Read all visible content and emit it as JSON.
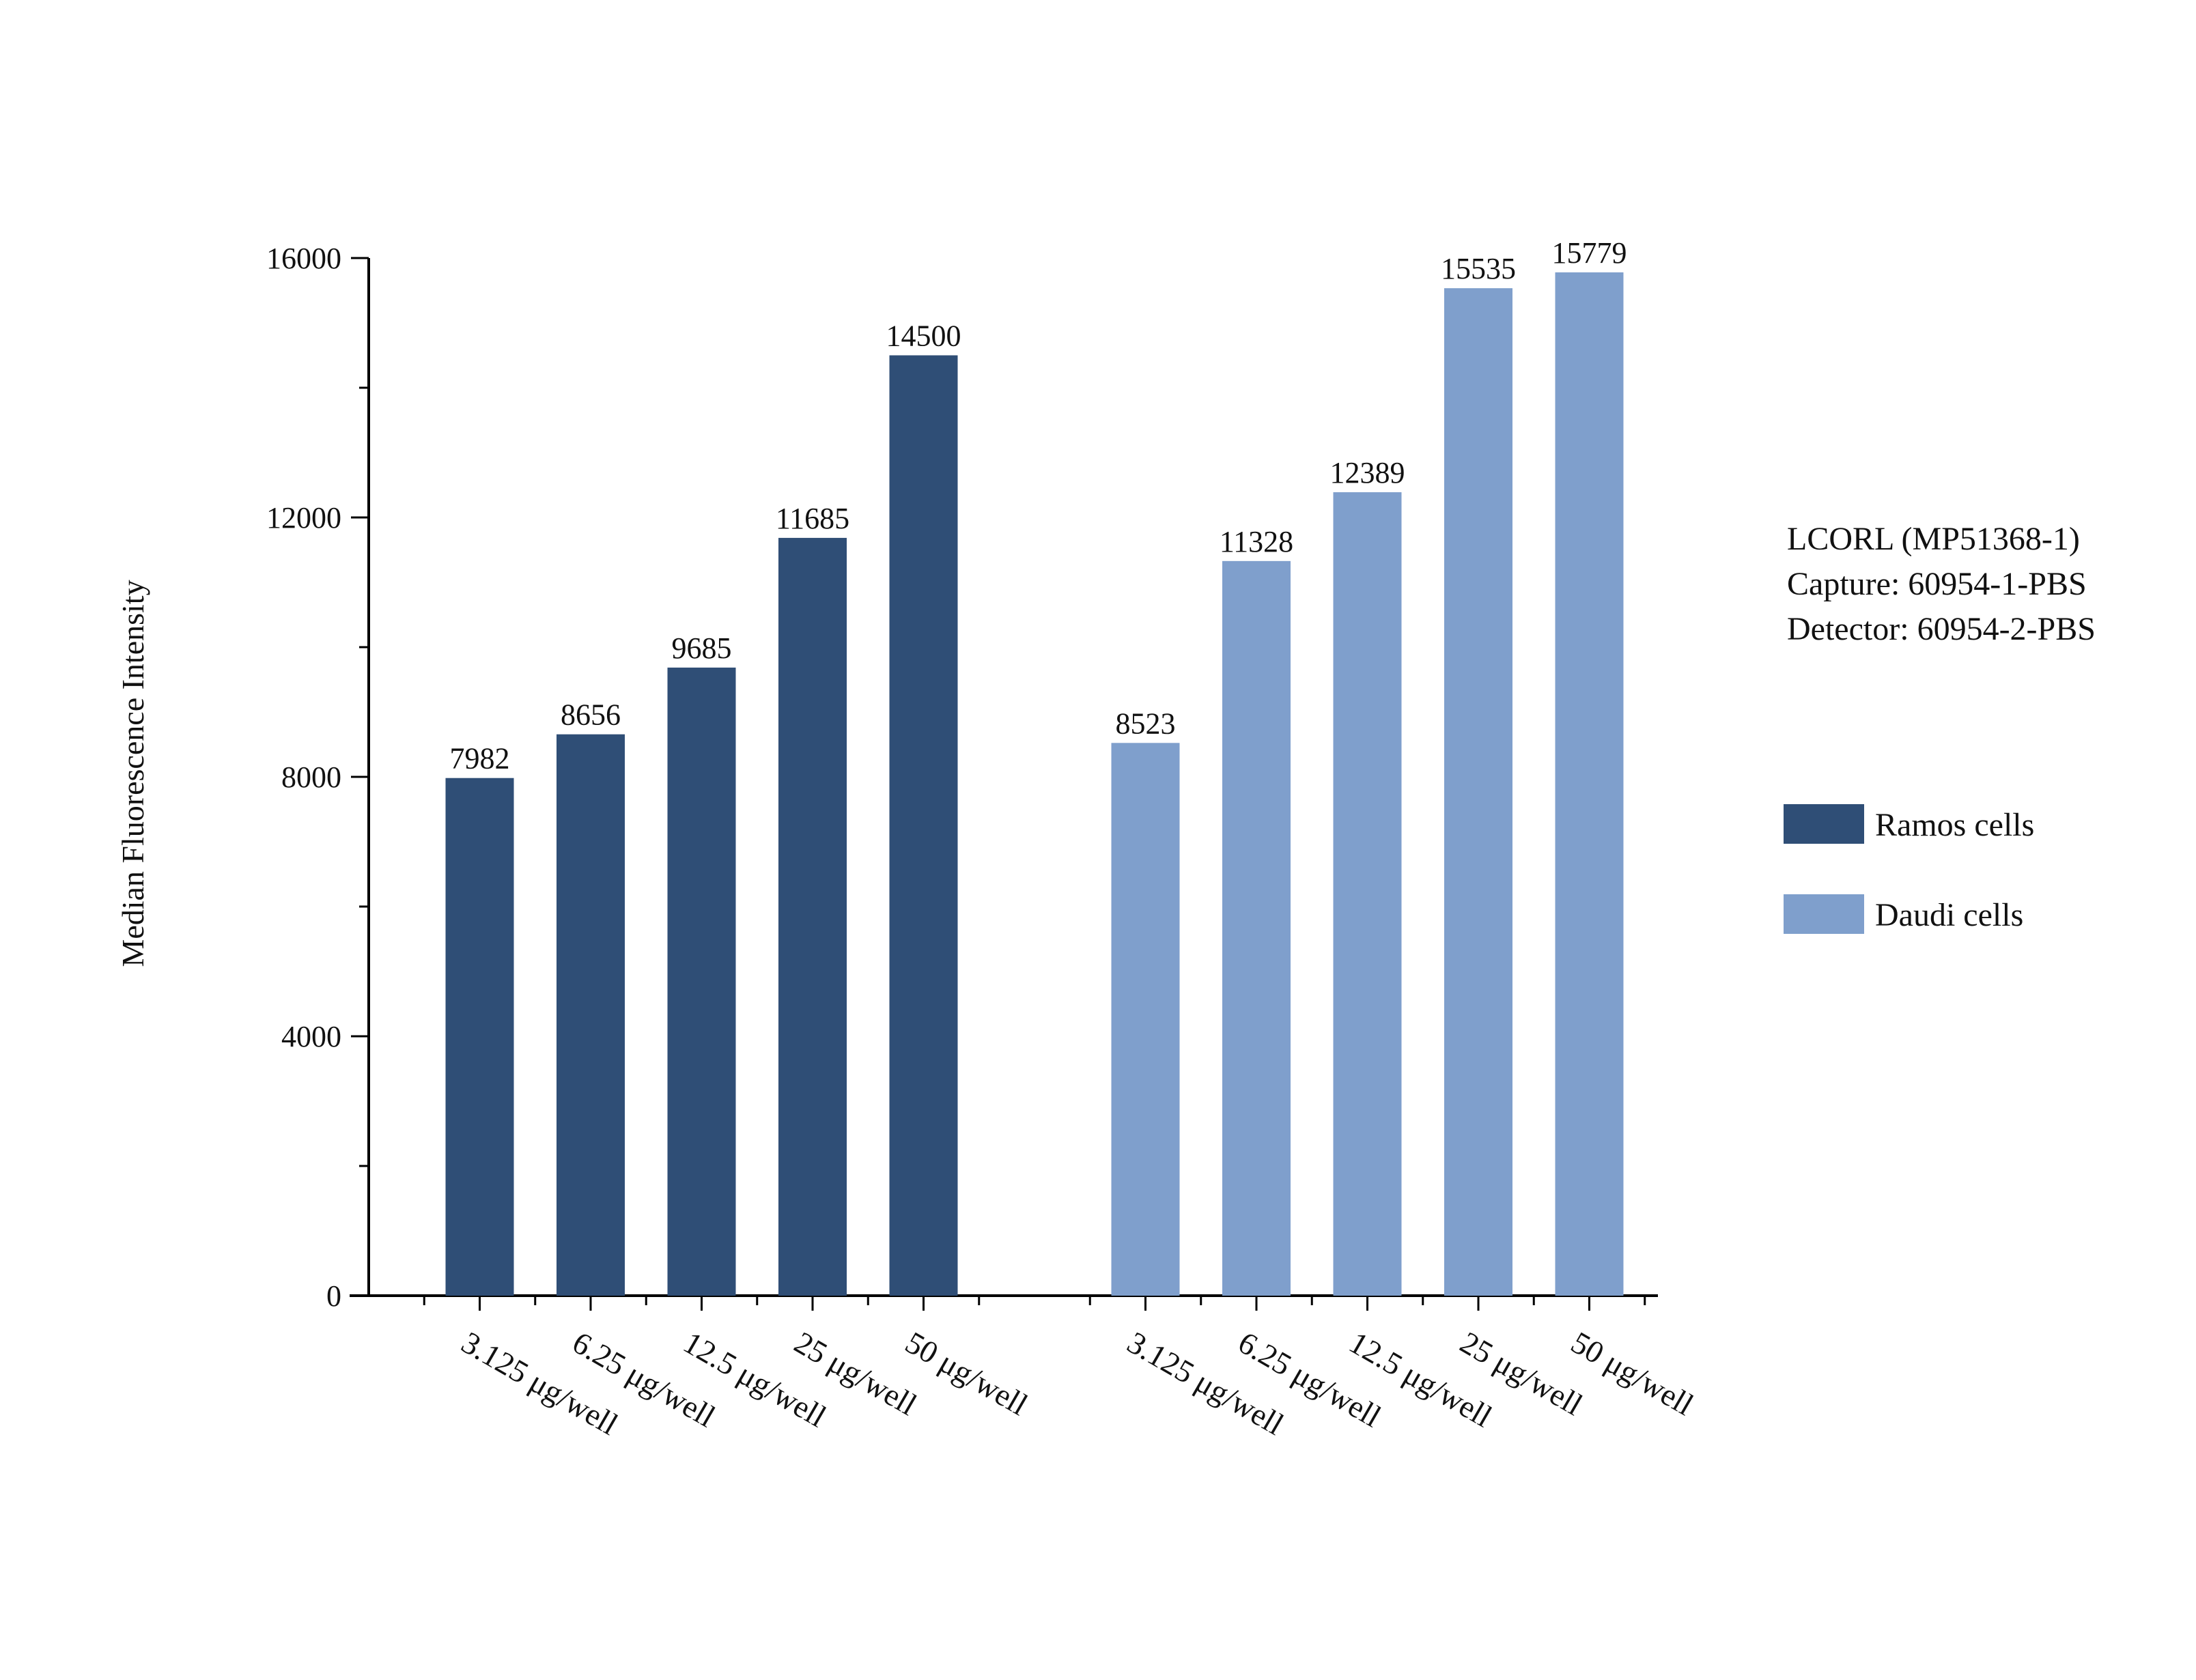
{
  "chart_data": {
    "type": "bar",
    "title": "",
    "xlabel": "",
    "ylabel": "Median Fluorescence Intensity",
    "ylim": [
      0,
      16000
    ],
    "yticks": [
      0,
      4000,
      8000,
      12000,
      16000
    ],
    "grid": false,
    "legend_position": "right",
    "annotation": [
      "LCORL (MP51368-1)",
      "Capture: 60954-1-PBS",
      "Detector: 60954-2-PBS"
    ],
    "series": [
      {
        "name": "Ramos cells",
        "color": "#2f4e76",
        "categories": [
          "3.125 μg/well",
          "6.25 μg/well",
          "12.5 μg/well",
          "25 μg/well",
          "50 μg/well"
        ],
        "values": [
          7982,
          8656,
          9685,
          11685,
          14500
        ]
      },
      {
        "name": "Daudi cells",
        "color": "#7f9fcc",
        "categories": [
          "3.125 μg/well",
          "6.25 μg/well",
          "12.5 μg/well",
          "25 μg/well",
          "50 μg/well"
        ],
        "values": [
          8523,
          11328,
          12389,
          15535,
          15779
        ]
      }
    ]
  }
}
